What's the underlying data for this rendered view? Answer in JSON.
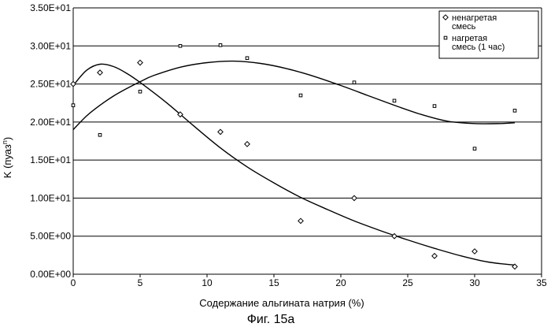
{
  "figure": {
    "caption": "Фиг. 15а"
  },
  "chart_data": {
    "type": "scatter",
    "xlabel": "Содержание альгината натрия (%)",
    "ylabel": "K (пуаз",
    "ylabel_sup": "n",
    "ylabel_tail": ")",
    "xlim": [
      0,
      35
    ],
    "ylim": [
      0,
      35
    ],
    "x_ticks": [
      0,
      5,
      10,
      15,
      20,
      25,
      30,
      35
    ],
    "x_tick_labels": [
      "0",
      "5",
      "10",
      "15",
      "20",
      "25",
      "30",
      "35"
    ],
    "y_ticks": [
      0,
      5,
      10,
      15,
      20,
      25,
      30,
      35
    ],
    "y_tick_labels": [
      "0.00E+00",
      "5.00E+00",
      "1.00E+01",
      "1.50E+01",
      "2.00E+01",
      "2.50E+01",
      "3.00E+01",
      "3.50E+01"
    ],
    "grid": "horizontal",
    "legend_position": "top-right",
    "series": [
      {
        "name": "ненагретая смесь",
        "marker": "diamond",
        "x": [
          0,
          2,
          5,
          8,
          11,
          13,
          17,
          21,
          24,
          27,
          30,
          33
        ],
        "y": [
          25.0,
          26.5,
          27.8,
          21.0,
          18.7,
          17.1,
          7.0,
          10.0,
          5.0,
          2.4,
          3.0,
          1.0
        ],
        "trendline_x": [
          0,
          1,
          2,
          3,
          4,
          5,
          7,
          9,
          11,
          13,
          15,
          17,
          19,
          21,
          23,
          25,
          27,
          29,
          31,
          33
        ],
        "trendline_y": [
          24.8,
          26.8,
          27.6,
          27.3,
          26.4,
          25.2,
          22.5,
          19.5,
          16.6,
          14.1,
          12.0,
          10.1,
          8.5,
          7.0,
          5.7,
          4.5,
          3.4,
          2.4,
          1.6,
          1.2
        ]
      },
      {
        "name": "нагретая смесь (1 час)",
        "marker": "square",
        "x": [
          0,
          2,
          5,
          8,
          11,
          13,
          17,
          21,
          24,
          27,
          30,
          33
        ],
        "y": [
          22.2,
          18.3,
          24.0,
          30.0,
          30.1,
          28.4,
          23.5,
          25.2,
          22.8,
          22.1,
          16.5,
          21.5
        ],
        "trendline_x": [
          0,
          1,
          2,
          3,
          4,
          5,
          6,
          8,
          10,
          12,
          14,
          16,
          18,
          20,
          22,
          24,
          26,
          28,
          30,
          32,
          33
        ],
        "trendline_y": [
          19.0,
          20.8,
          22.2,
          23.4,
          24.4,
          25.3,
          26.1,
          27.2,
          27.8,
          28.0,
          27.7,
          27.0,
          26.0,
          24.8,
          23.5,
          22.2,
          21.0,
          20.1,
          19.8,
          19.8,
          19.9
        ]
      }
    ]
  }
}
